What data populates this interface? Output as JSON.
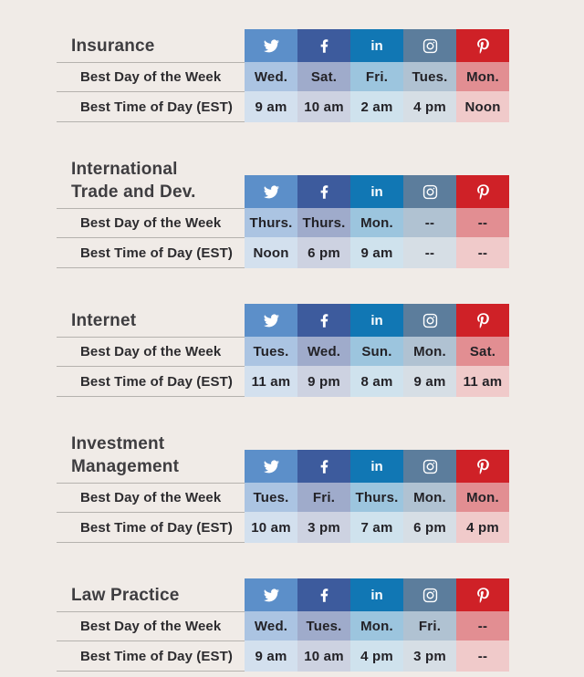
{
  "page": {
    "background": "#f0ebe7"
  },
  "chart_data": {
    "type": "table",
    "row_labels": {
      "day": "Best Day of the Week",
      "time": "Best Time of Day (EST)"
    },
    "platforms": [
      {
        "name": "Twitter",
        "icon": "twitter-icon",
        "header_color": "#5c8fc9",
        "day_color": "#abc4e2",
        "time_color": "#d3e0ee"
      },
      {
        "name": "Facebook",
        "icon": "facebook-icon",
        "header_color": "#3d5b9d",
        "day_color": "#9fabcb",
        "time_color": "#cdd2e1"
      },
      {
        "name": "LinkedIn",
        "icon": "linkedin-icon",
        "header_color": "#1177b4",
        "day_color": "#9cc5de",
        "time_color": "#cfe2ed"
      },
      {
        "name": "Instagram",
        "icon": "instagram-icon",
        "header_color": "#5c7d9c",
        "day_color": "#b0c2d2",
        "time_color": "#d6dee5"
      },
      {
        "name": "Pinterest",
        "icon": "pinterest-icon",
        "header_color": "#cf2127",
        "day_color": "#e28e92",
        "time_color": "#f0caca"
      }
    ],
    "sections": [
      {
        "title": "Insurance",
        "title_lines": [
          "Insurance"
        ],
        "days": [
          "Wed.",
          "Sat.",
          "Fri.",
          "Tues.",
          "Mon."
        ],
        "times": [
          "9 am",
          "10 am",
          "2 am",
          "4 pm",
          "Noon"
        ]
      },
      {
        "title": "International Trade and Dev.",
        "title_lines": [
          "International",
          "Trade and Dev."
        ],
        "days": [
          "Thurs.",
          "Thurs.",
          "Mon.",
          "--",
          "--"
        ],
        "times": [
          "Noon",
          "6 pm",
          "9 am",
          "--",
          "--"
        ]
      },
      {
        "title": "Internet",
        "title_lines": [
          "Internet"
        ],
        "days": [
          "Tues.",
          "Wed.",
          "Sun.",
          "Mon.",
          "Sat."
        ],
        "times": [
          "11 am",
          "9 pm",
          "8 am",
          "9 am",
          "11 am"
        ]
      },
      {
        "title": "Investment Management",
        "title_lines": [
          "Investment",
          "Management"
        ],
        "days": [
          "Tues.",
          "Fri.",
          "Thurs.",
          "Mon.",
          "Mon."
        ],
        "times": [
          "10 am",
          "3 pm",
          "7 am",
          "6 pm",
          "4 pm"
        ]
      },
      {
        "title": "Law Practice",
        "title_lines": [
          "Law Practice"
        ],
        "days": [
          "Wed.",
          "Tues.",
          "Mon.",
          "Fri.",
          "--"
        ],
        "times": [
          "9 am",
          "10 am",
          "4 pm",
          "3 pm",
          "--"
        ]
      }
    ]
  }
}
